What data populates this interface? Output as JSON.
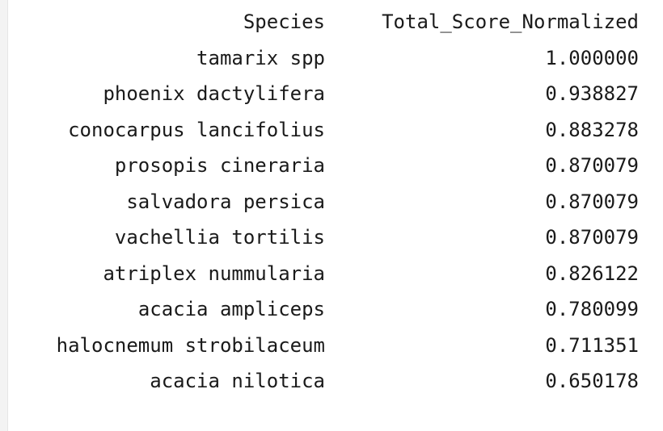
{
  "table": {
    "columns": [
      "Species",
      "Total_Score_Normalized"
    ],
    "rows": [
      {
        "species": "tamarix spp",
        "score": "1.000000"
      },
      {
        "species": "phoenix dactylifera",
        "score": "0.938827"
      },
      {
        "species": "conocarpus lancifolius",
        "score": "0.883278"
      },
      {
        "species": "prosopis cineraria",
        "score": "0.870079"
      },
      {
        "species": "salvadora persica",
        "score": "0.870079"
      },
      {
        "species": "vachellia tortilis",
        "score": "0.870079"
      },
      {
        "species": "atriplex nummularia",
        "score": "0.826122"
      },
      {
        "species": "acacia ampliceps",
        "score": "0.780099"
      },
      {
        "species": "halocnemum strobilaceum",
        "score": "0.711351"
      },
      {
        "species": "acacia nilotica",
        "score": "0.650178"
      }
    ]
  }
}
